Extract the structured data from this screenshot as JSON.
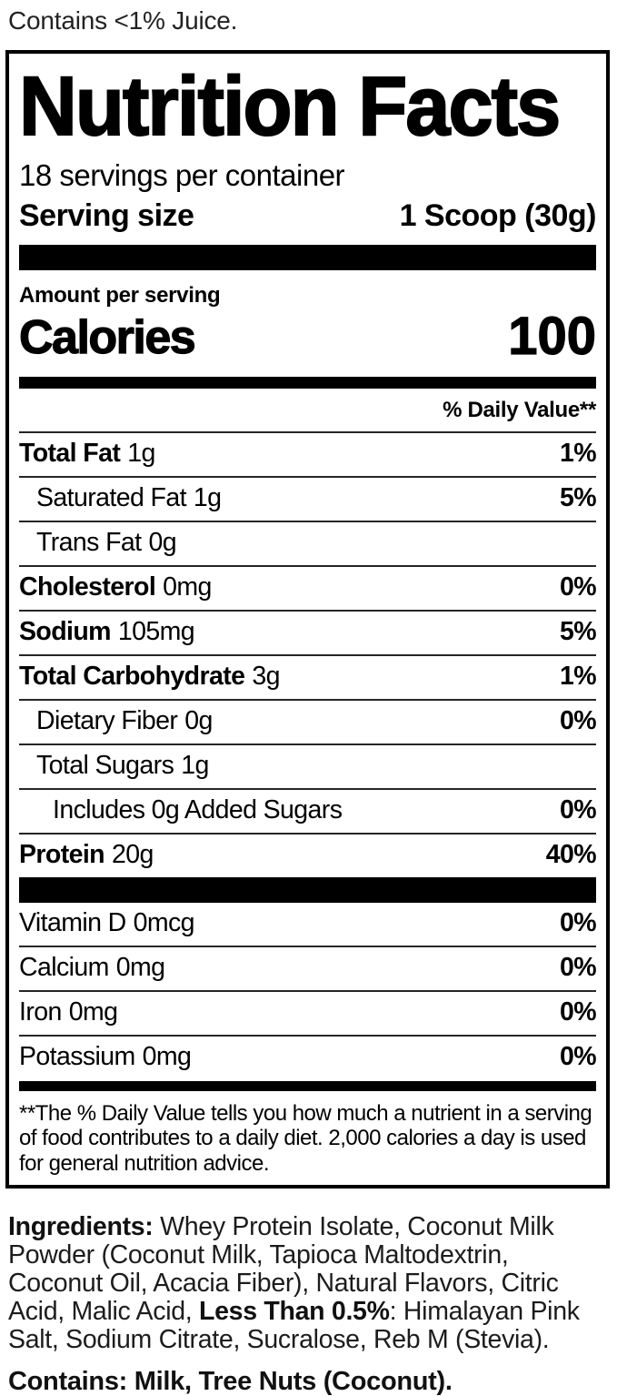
{
  "colors": {
    "ink": "#000000",
    "body_ink": "#1c1c1c",
    "paper": "#ffffff"
  },
  "top_note": "Contains <1% Juice.",
  "label": {
    "title": "Nutrition Facts",
    "servings_per_container": "18 servings per container",
    "serving_size_label": "Serving size",
    "serving_size_value": "1 Scoop (30g)",
    "amount_per_serving": "Amount per serving",
    "calories_label": "Calories",
    "calories_value": "100",
    "daily_value_header": "% Daily Value**",
    "rows": [
      {
        "label": "Total Fat",
        "amount": "1g",
        "dv": "1%"
      },
      {
        "label": "Saturated Fat",
        "amount": "1g",
        "dv": "5%"
      },
      {
        "label": "Trans Fat",
        "amount": "0g",
        "dv": ""
      },
      {
        "label": "Cholesterol",
        "amount": "0mg",
        "dv": "0%"
      },
      {
        "label": "Sodium",
        "amount": "105mg",
        "dv": "5%"
      },
      {
        "label": "Total Carbohydrate",
        "amount": "3g",
        "dv": "1%"
      },
      {
        "label": "Dietary Fiber",
        "amount": "0g",
        "dv": "0%"
      },
      {
        "label": "Total Sugars",
        "amount": "1g",
        "dv": ""
      },
      {
        "label": "Includes 0g Added Sugars",
        "amount": "",
        "dv": "0%"
      },
      {
        "label": "Protein",
        "amount": "20g",
        "dv": "40%"
      }
    ],
    "micronutrients": [
      {
        "label": "Vitamin D",
        "amount": "0mcg",
        "dv": "0%"
      },
      {
        "label": "Calcium",
        "amount": "0mg",
        "dv": "0%"
      },
      {
        "label": "Iron",
        "amount": "0mg",
        "dv": "0%"
      },
      {
        "label": "Potassium",
        "amount": "0mg",
        "dv": "0%"
      }
    ],
    "footnote": "**The % Daily Value tells you how much a nutrient in a serving of food contributes to a daily diet. 2,000 calories a day is used for general nutrition advice."
  },
  "ingredients": {
    "lead_bold": "Ingredients:",
    "segment1": " Whey Protein Isolate, Coconut Milk Powder (Coconut Milk, Tapioca Maltodextrin, Coconut Oil, Acacia Fiber), Natural Flavors, Citric Acid, Malic Acid, ",
    "bold_phrase": "Less Than 0.5%",
    "segment2": ": Himalayan Pink Salt, Sodium Citrate, Sucralose, Reb M (Stevia)."
  },
  "contains_note": "Contains: Milk, Tree Nuts (Coconut)."
}
